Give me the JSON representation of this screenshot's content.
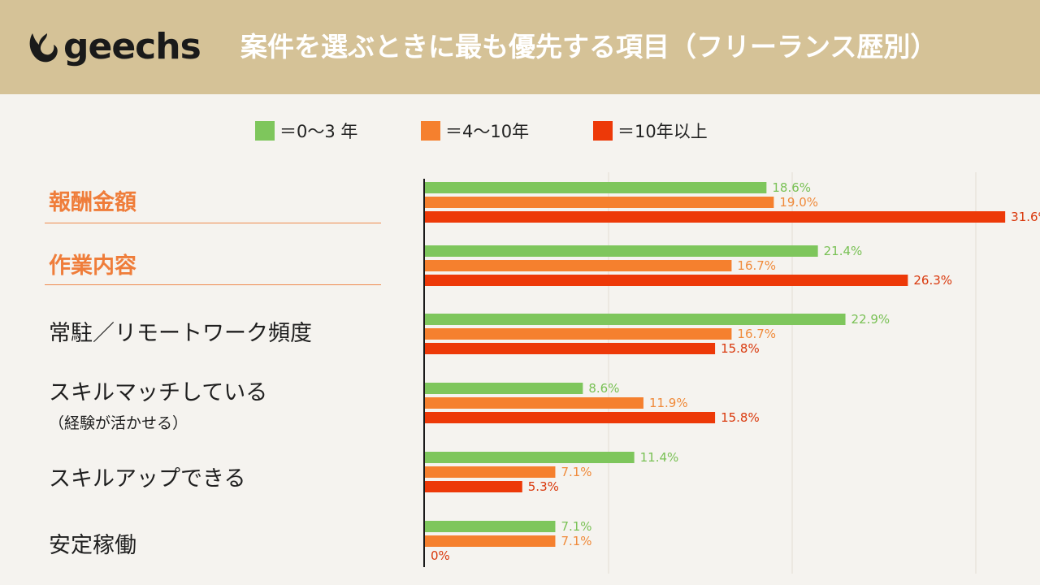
{
  "brand": {
    "logo_text": "geechs"
  },
  "title": "案件を選ぶときに最も優先する項目（フリーランス歴別）",
  "colors": {
    "header_bg": "#d5c297",
    "green": "#7ec65c",
    "orange": "#f5802e",
    "red": "#ed3908",
    "accent": "#ef7d3a"
  },
  "legend": [
    {
      "label": "＝0〜3 年",
      "color": "#7ec65c"
    },
    {
      "label": "＝4〜10年",
      "color": "#f5802e"
    },
    {
      "label": "＝10年以上",
      "color": "#ed3908"
    }
  ],
  "chart_data": {
    "type": "bar",
    "orientation": "horizontal",
    "title": "案件を選ぶときに最も優先する項目（フリーランス歴別）",
    "categories": [
      "報酬金額",
      "作業内容",
      "常駐／リモートワーク頻度",
      "スキルマッチしている",
      "スキルアップできる",
      "安定稼働"
    ],
    "category_subtitles": [
      "",
      "",
      "",
      "（経験が活かせる）",
      "",
      ""
    ],
    "highlighted_categories": [
      "報酬金額",
      "作業内容"
    ],
    "series": [
      {
        "name": "＝0〜3 年",
        "color": "#7ec65c",
        "values": [
          18.6,
          21.4,
          22.9,
          8.6,
          11.4,
          7.1
        ]
      },
      {
        "name": "＝4〜10年",
        "color": "#f5802e",
        "values": [
          19.0,
          16.7,
          16.7,
          11.9,
          7.1,
          7.1
        ]
      },
      {
        "name": "＝10年以上",
        "color": "#ed3908",
        "values": [
          31.6,
          26.3,
          15.8,
          15.8,
          5.3,
          0
        ]
      }
    ],
    "value_suffix": "%",
    "xlim": [
      0,
      35
    ],
    "grid": true,
    "legend_position": "top"
  }
}
